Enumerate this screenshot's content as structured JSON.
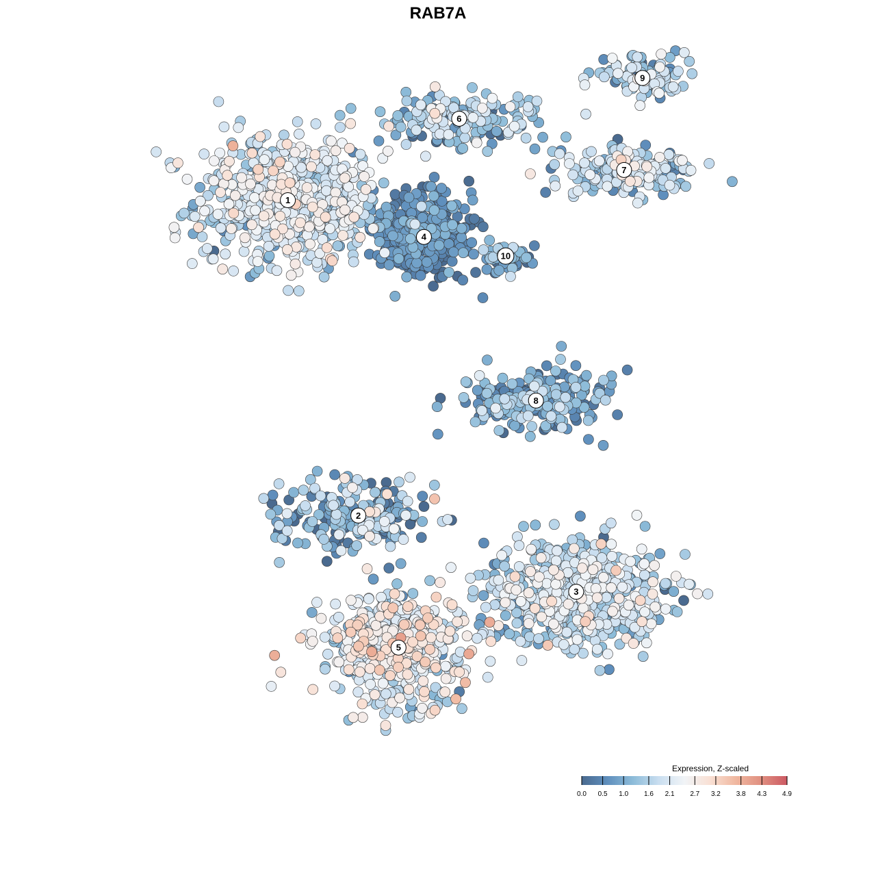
{
  "chart_data": {
    "type": "scatter",
    "title": "RAB7A",
    "xlabel": "",
    "ylabel": "",
    "grid": false,
    "axes_visible": false,
    "point_fill_by": "expression",
    "colorbar": {
      "title": "Expression, Z-scaled",
      "placement": "bottom-right",
      "ticks": [
        "0.0",
        "0.5",
        "1.0",
        "1.6",
        "2.1",
        "2.7",
        "3.2",
        "3.8",
        "4.3",
        "4.9"
      ],
      "range": [
        0.0,
        4.9
      ],
      "colors": [
        "#4a6a8f",
        "#5f8fbd",
        "#8dbcd9",
        "#c9def0",
        "#f1f4f7",
        "#f9e0d4",
        "#f0b8a0",
        "#e08f80",
        "#cc5963"
      ]
    },
    "xlim": [
      -50,
      50
    ],
    "ylim": [
      -50,
      50
    ],
    "clusters": [
      {
        "label": "1",
        "x": -21.3,
        "y": 36.2,
        "spread_x": 13,
        "spread_y": 10,
        "count": 700,
        "expr_mean": 1.9,
        "expr_sd": 0.55
      },
      {
        "label": "2",
        "x": -11.3,
        "y": -11.8,
        "spread_x": 11,
        "spread_y": 6,
        "count": 230,
        "expr_mean": 1.1,
        "expr_sd": 0.75
      },
      {
        "label": "3",
        "x": 19.6,
        "y": -23.4,
        "spread_x": 13,
        "spread_y": 8,
        "count": 620,
        "expr_mean": 1.7,
        "expr_sd": 0.6
      },
      {
        "label": "4",
        "x": -2.0,
        "y": 30.6,
        "spread_x": 7,
        "spread_y": 6,
        "count": 430,
        "expr_mean": 0.45,
        "expr_sd": 0.35
      },
      {
        "label": "5",
        "x": -5.6,
        "y": -31.9,
        "spread_x": 10,
        "spread_y": 8,
        "count": 520,
        "expr_mean": 2.1,
        "expr_sd": 0.65
      },
      {
        "label": "6",
        "x": 3.0,
        "y": 48.6,
        "spread_x": 11,
        "spread_y": 4,
        "count": 180,
        "expr_mean": 1.3,
        "expr_sd": 0.6
      },
      {
        "label": "7",
        "x": 26.4,
        "y": 40.8,
        "spread_x": 10,
        "spread_y": 4,
        "count": 180,
        "expr_mean": 1.6,
        "expr_sd": 0.65
      },
      {
        "label": "8",
        "x": 13.9,
        "y": 5.7,
        "spread_x": 10,
        "spread_y": 5,
        "count": 220,
        "expr_mean": 0.9,
        "expr_sd": 0.6
      },
      {
        "label": "9",
        "x": 29.0,
        "y": 54.8,
        "spread_x": 7,
        "spread_y": 3,
        "count": 100,
        "expr_mean": 1.6,
        "expr_sd": 0.6
      },
      {
        "label": "10",
        "x": 9.6,
        "y": 27.7,
        "spread_x": 3.5,
        "spread_y": 2.5,
        "count": 60,
        "expr_mean": 0.9,
        "expr_sd": 0.5
      }
    ]
  }
}
